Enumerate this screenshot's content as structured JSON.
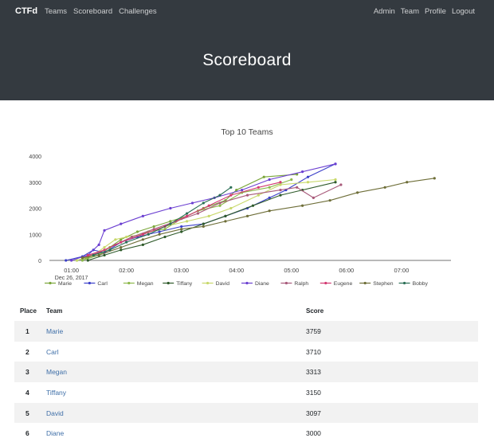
{
  "nav": {
    "brand": "CTFd",
    "left": [
      "Teams",
      "Scoreboard",
      "Challenges"
    ],
    "right": [
      "Admin",
      "Team",
      "Profile",
      "Logout"
    ]
  },
  "page": {
    "title": "Scoreboard"
  },
  "chart_data": {
    "type": "line",
    "title": "Top 10 Teams",
    "xlabel": "",
    "ylabel": "",
    "ylim": [
      0,
      4000
    ],
    "yticks": [
      0,
      1000,
      2000,
      3000,
      4000
    ],
    "xlim": [
      0.6,
      7.9
    ],
    "xticks": [
      {
        "value": 1,
        "label": "01:00",
        "sublabel": "Dec 26, 2017"
      },
      {
        "value": 2,
        "label": "02:00"
      },
      {
        "value": 3,
        "label": "03:00"
      },
      {
        "value": 4,
        "label": "04:00"
      },
      {
        "value": 5,
        "label": "05:00"
      },
      {
        "value": 6,
        "label": "06:00"
      },
      {
        "value": 7,
        "label": "07:00"
      }
    ],
    "legend_position": "bottom",
    "series": [
      {
        "name": "Marie",
        "color": "#7aa63a",
        "points": [
          [
            1.1,
            0
          ],
          [
            1.3,
            100
          ],
          [
            1.5,
            300
          ],
          [
            1.7,
            500
          ],
          [
            1.9,
            800
          ],
          [
            2.2,
            1100
          ],
          [
            2.5,
            1300
          ],
          [
            2.8,
            1500
          ],
          [
            3.1,
            1700
          ],
          [
            3.4,
            2000
          ],
          [
            3.8,
            2300
          ],
          [
            4.0,
            2700
          ],
          [
            4.5,
            3200
          ],
          [
            5.1,
            3300
          ]
        ]
      },
      {
        "name": "Carl",
        "color": "#3b3fc9",
        "points": [
          [
            0.9,
            0
          ],
          [
            1.2,
            150
          ],
          [
            1.4,
            400
          ],
          [
            1.6,
            300
          ],
          [
            1.9,
            700
          ],
          [
            2.2,
            900
          ],
          [
            2.6,
            1100
          ],
          [
            3.0,
            1300
          ],
          [
            3.4,
            1400
          ],
          [
            3.8,
            1700
          ],
          [
            4.2,
            2000
          ],
          [
            4.6,
            2400
          ],
          [
            4.9,
            2700
          ],
          [
            5.3,
            3200
          ],
          [
            5.8,
            3700
          ]
        ]
      },
      {
        "name": "Megan",
        "color": "#8cb84a",
        "points": [
          [
            1.2,
            0
          ],
          [
            1.5,
            200
          ],
          [
            1.7,
            500
          ],
          [
            1.9,
            700
          ],
          [
            2.1,
            900
          ],
          [
            2.4,
            1100
          ],
          [
            2.7,
            1200
          ],
          [
            3.0,
            1600
          ],
          [
            3.3,
            1900
          ],
          [
            3.7,
            2100
          ],
          [
            4.1,
            2600
          ],
          [
            4.6,
            2800
          ],
          [
            5.0,
            3100
          ]
        ]
      },
      {
        "name": "Tiffany",
        "color": "#2e5a2a",
        "points": [
          [
            1.3,
            0
          ],
          [
            1.6,
            200
          ],
          [
            1.9,
            400
          ],
          [
            2.3,
            600
          ],
          [
            2.7,
            900
          ],
          [
            3.0,
            1100
          ],
          [
            3.4,
            1400
          ],
          [
            3.8,
            1700
          ],
          [
            4.3,
            2100
          ],
          [
            4.8,
            2500
          ],
          [
            5.2,
            2700
          ],
          [
            5.8,
            3000
          ]
        ]
      },
      {
        "name": "David",
        "color": "#c8d86a",
        "points": [
          [
            1.1,
            0
          ],
          [
            1.4,
            200
          ],
          [
            1.6,
            500
          ],
          [
            1.8,
            800
          ],
          [
            2.0,
            900
          ],
          [
            2.3,
            1000
          ],
          [
            2.7,
            1300
          ],
          [
            3.1,
            1500
          ],
          [
            3.5,
            1700
          ],
          [
            3.9,
            2000
          ],
          [
            4.4,
            2500
          ],
          [
            4.8,
            2900
          ],
          [
            5.3,
            3000
          ],
          [
            5.8,
            3100
          ]
        ]
      },
      {
        "name": "Diane",
        "color": "#6b3fd1",
        "points": [
          [
            1.0,
            0
          ],
          [
            1.3,
            200
          ],
          [
            1.5,
            600
          ],
          [
            1.6,
            1150
          ],
          [
            1.9,
            1400
          ],
          [
            2.3,
            1700
          ],
          [
            2.8,
            2000
          ],
          [
            3.2,
            2200
          ],
          [
            3.6,
            2400
          ],
          [
            4.1,
            2700
          ],
          [
            4.6,
            3100
          ],
          [
            5.2,
            3400
          ],
          [
            5.8,
            3700
          ]
        ]
      },
      {
        "name": "Ralph",
        "color": "#a85a7a",
        "points": [
          [
            1.2,
            100
          ],
          [
            1.5,
            300
          ],
          [
            1.8,
            600
          ],
          [
            2.1,
            900
          ],
          [
            2.5,
            1200
          ],
          [
            2.9,
            1500
          ],
          [
            3.3,
            1800
          ],
          [
            3.7,
            2200
          ],
          [
            4.2,
            2500
          ],
          [
            4.8,
            2700
          ],
          [
            5.1,
            2800
          ],
          [
            5.4,
            2400
          ],
          [
            5.9,
            2900
          ]
        ]
      },
      {
        "name": "Eugene",
        "color": "#d33a72",
        "points": [
          [
            1.3,
            200
          ],
          [
            1.6,
            400
          ],
          [
            1.9,
            700
          ],
          [
            2.3,
            1000
          ],
          [
            2.7,
            1300
          ],
          [
            3.1,
            1700
          ],
          [
            3.5,
            2100
          ],
          [
            3.9,
            2500
          ],
          [
            4.4,
            2800
          ],
          [
            4.8,
            3000
          ]
        ]
      },
      {
        "name": "Stephen",
        "color": "#6e6e38",
        "points": [
          [
            1.2,
            100
          ],
          [
            1.5,
            200
          ],
          [
            1.9,
            500
          ],
          [
            2.3,
            800
          ],
          [
            2.6,
            1000
          ],
          [
            3.0,
            1200
          ],
          [
            3.4,
            1300
          ],
          [
            3.8,
            1500
          ],
          [
            4.2,
            1700
          ],
          [
            4.6,
            1900
          ],
          [
            5.2,
            2100
          ],
          [
            5.7,
            2300
          ],
          [
            6.2,
            2600
          ],
          [
            6.7,
            2800
          ],
          [
            7.1,
            3000
          ],
          [
            7.6,
            3150
          ]
        ]
      },
      {
        "name": "Bobby",
        "color": "#2a6e55",
        "points": [
          [
            1.4,
            200
          ],
          [
            1.7,
            400
          ],
          [
            2.0,
            700
          ],
          [
            2.4,
            1000
          ],
          [
            2.8,
            1400
          ],
          [
            3.1,
            1800
          ],
          [
            3.4,
            2200
          ],
          [
            3.7,
            2500
          ],
          [
            3.9,
            2800
          ]
        ]
      }
    ]
  },
  "table": {
    "headers": {
      "place": "Place",
      "team": "Team",
      "score": "Score"
    },
    "rows": [
      {
        "place": "1",
        "team": "Marie",
        "score": "3759"
      },
      {
        "place": "2",
        "team": "Carl",
        "score": "3710"
      },
      {
        "place": "3",
        "team": "Megan",
        "score": "3313"
      },
      {
        "place": "4",
        "team": "Tiffany",
        "score": "3150"
      },
      {
        "place": "5",
        "team": "David",
        "score": "3097"
      },
      {
        "place": "6",
        "team": "Diane",
        "score": "3000"
      }
    ]
  }
}
